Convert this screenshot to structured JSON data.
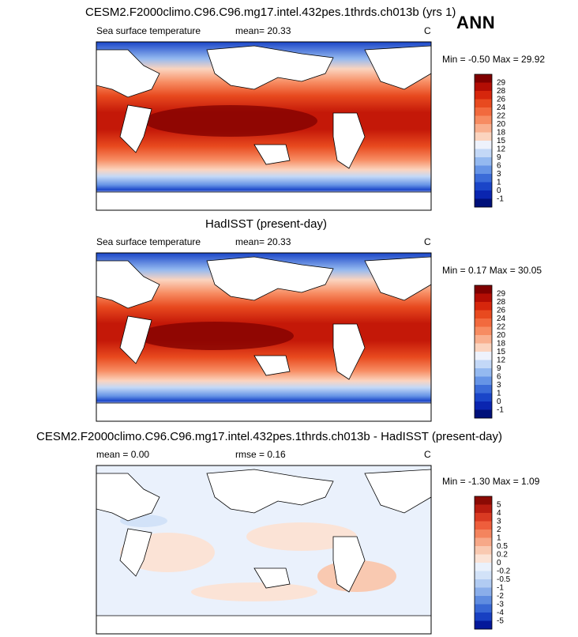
{
  "season": "ANN",
  "panels": [
    {
      "title": "CESM2.F2000climo.C96.C96.mg17.intel.432pes.1thrds.ch013b (yrs 1)",
      "variable": "Sea surface temperature",
      "stat_left": "mean=  20.33",
      "stat_mid": "",
      "units": "C",
      "minmax": "Min =  -0.50 Max =  29.92"
    },
    {
      "title": "HadISST (present-day)",
      "variable": "Sea surface temperature",
      "stat_left": "mean=  20.33",
      "stat_mid": "",
      "units": "C",
      "minmax": "Min =  0.17 Max =  30.05"
    },
    {
      "title": "CESM2.F2000climo.C96.C96.mg17.intel.432pes.1thrds.ch013b - HadISST (present-day)",
      "variable": "mean =   0.00",
      "stat_left": "",
      "stat_mid": "rmse =   0.16",
      "units": "C",
      "minmax": "Min = -1.30 Max =  1.09"
    }
  ],
  "chart_data": [
    {
      "type": "heatmap",
      "title": "CESM2.F2000climo.C96.C96.mg17.intel.432pes.1thrds.ch013b (yrs 1)",
      "variable": "Sea surface temperature",
      "units": "C",
      "mean": 20.33,
      "min": -0.5,
      "max": 29.92,
      "colorbar_levels": [
        "29",
        "28",
        "26",
        "24",
        "22",
        "20",
        "18",
        "15",
        "12",
        "9",
        "6",
        "3",
        "1",
        "0",
        "-1"
      ],
      "colors": [
        "#7f0000",
        "#b30d04",
        "#d6260c",
        "#e84a1f",
        "#f26a3e",
        "#f78c62",
        "#f9b08f",
        "#fbd4bf",
        "#eef2fc",
        "#c3d8f7",
        "#94b9f0",
        "#6694e6",
        "#3b6bd8",
        "#1a45c8",
        "#0a25b0",
        "#00107a"
      ]
    },
    {
      "type": "heatmap",
      "title": "HadISST (present-day)",
      "variable": "Sea surface temperature",
      "units": "C",
      "mean": 20.33,
      "min": 0.17,
      "max": 30.05,
      "colorbar_levels": [
        "29",
        "28",
        "26",
        "24",
        "22",
        "20",
        "18",
        "15",
        "12",
        "9",
        "6",
        "3",
        "1",
        "0",
        "-1"
      ],
      "colors": [
        "#7f0000",
        "#b30d04",
        "#d6260c",
        "#e84a1f",
        "#f26a3e",
        "#f78c62",
        "#f9b08f",
        "#fbd4bf",
        "#eef2fc",
        "#c3d8f7",
        "#94b9f0",
        "#6694e6",
        "#3b6bd8",
        "#1a45c8",
        "#0a25b0",
        "#00107a"
      ]
    },
    {
      "type": "heatmap",
      "title": "CESM2.F2000climo.C96.C96.mg17.intel.432pes.1thrds.ch013b - HadISST (present-day)",
      "units": "C",
      "mean": 0.0,
      "rmse": 0.16,
      "min": -1.3,
      "max": 1.09,
      "colorbar_levels": [
        "5",
        "4",
        "3",
        "2",
        "1",
        "0.5",
        "0.2",
        "0",
        "-0.2",
        "-0.5",
        "-1",
        "-2",
        "-3",
        "-4",
        "-5"
      ],
      "colors": [
        "#8b0a04",
        "#b81c10",
        "#d93a22",
        "#ee5e3c",
        "#f4845e",
        "#f7a888",
        "#f9c9b1",
        "#fbe3d6",
        "#eaf1fc",
        "#d2e2f8",
        "#b1cbf2",
        "#8aaeea",
        "#5f8ce0",
        "#3867d4",
        "#1840c2",
        "#04189a"
      ]
    }
  ]
}
